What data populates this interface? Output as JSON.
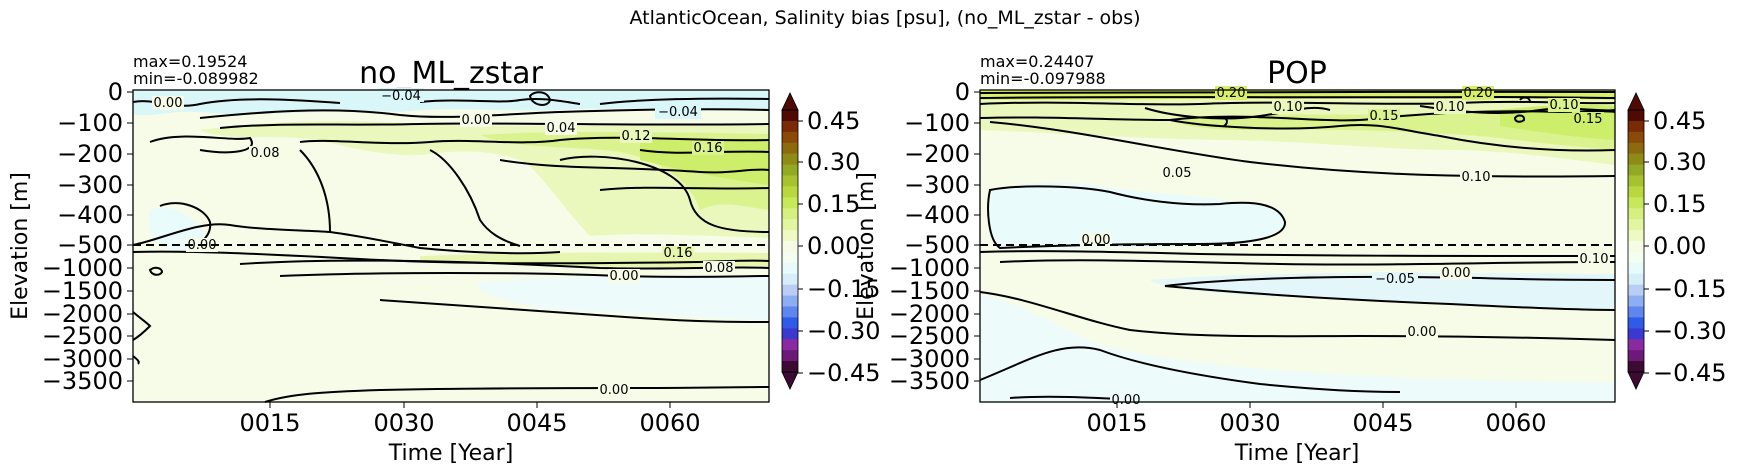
{
  "figure": {
    "suptitle": "AtlanticOcean, Salinity bias [psu], (no_ML_zstar - obs)"
  },
  "colors": {
    "colormap": [
      "#3d0a33",
      "#6b1a78",
      "#8a2aa0",
      "#3a3ad0",
      "#2f5be8",
      "#5f86ee",
      "#8eaef2",
      "#b9cdf5",
      "#d6eef8",
      "#e8fbfc",
      "#f3fdf0",
      "#f6fbe6",
      "#eef9c4",
      "#e2f6a2",
      "#d5f080",
      "#c8e85c",
      "#b9d83e",
      "#a7c22e",
      "#93a824",
      "#8f8b17",
      "#8e6a0f",
      "#8c4a0a",
      "#7a2a06",
      "#4e0a03"
    ],
    "contour_line": "#000000",
    "divider_line": "#000000"
  },
  "chart_data": [
    {
      "type": "heatmap",
      "title": "no_ML_zstar",
      "stats": [
        "max=0.19524",
        "min=-0.089982"
      ],
      "xlabel": "Time [Year]",
      "ylabel": "Elevation [m]",
      "xticks": [
        "0015",
        "0030",
        "0045",
        "0060"
      ],
      "yticks": [
        "0",
        "−100",
        "−200",
        "−300",
        "−400",
        "−500",
        "−1000",
        "−1500",
        "−2000",
        "−2500",
        "−3000",
        "−3500"
      ],
      "colorbar_ticks": [
        "0.45",
        "0.30",
        "0.15",
        "0.00",
        "−0.15",
        "−0.30",
        "−0.45"
      ],
      "contour_labels": [
        "0.00",
        "−0.04",
        "0.00",
        "0.04",
        "−0.04",
        "0.12",
        "0.16",
        "0.08",
        "0.00",
        "0.16",
        "0.08",
        "0.00",
        "0.00"
      ]
    },
    {
      "type": "heatmap",
      "title": "POP",
      "stats": [
        "max=0.24407",
        "min=-0.097988"
      ],
      "xlabel": "Time [Year]",
      "ylabel": "Elevation [m]",
      "xticks": [
        "0015",
        "0030",
        "0045",
        "0060"
      ],
      "yticks": [
        "0",
        "−100",
        "−200",
        "−300",
        "−400",
        "−500",
        "−1000",
        "−1500",
        "−2000",
        "−2500",
        "−3000",
        "−3500"
      ],
      "colorbar_ticks": [
        "0.45",
        "0.30",
        "0.15",
        "0.00",
        "−0.15",
        "−0.30",
        "−0.45"
      ],
      "contour_labels": [
        "0.20",
        "0.10",
        "0.15",
        "0.10",
        "0.20",
        "0.10",
        "0.15",
        "0.05",
        "0.10",
        "0.00",
        "0.10",
        "0.00",
        "−0.05",
        "0.00",
        "0.00"
      ]
    }
  ]
}
